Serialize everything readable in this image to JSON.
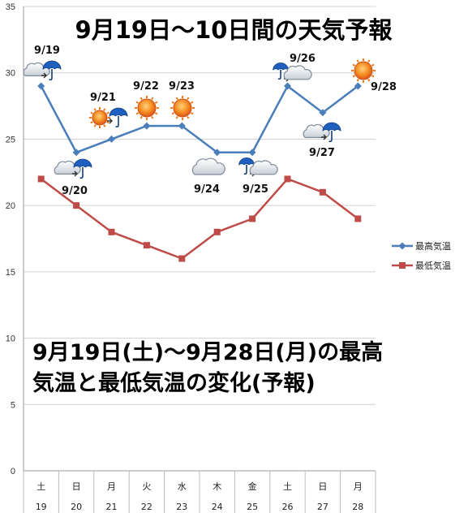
{
  "chart_data": {
    "type": "line",
    "title": "9月19日〜10日間の天気予報",
    "subtitle_lines": [
      "9月19日(土)〜9月28日(月)の最高",
      "気温と最低気温の変化(予報)"
    ],
    "xlabel": "",
    "ylabel": "",
    "ylim": [
      0,
      35
    ],
    "yticks": [
      "0",
      "5",
      "10",
      "15",
      "20",
      "25",
      "30",
      "35"
    ],
    "grid": "horizontal",
    "legend_position": "right",
    "categories": [
      {
        "weekday": "土",
        "day": "19"
      },
      {
        "weekday": "日",
        "day": "20"
      },
      {
        "weekday": "月",
        "day": "21"
      },
      {
        "weekday": "火",
        "day": "22"
      },
      {
        "weekday": "水",
        "day": "23"
      },
      {
        "weekday": "木",
        "day": "24"
      },
      {
        "weekday": "金",
        "day": "25"
      },
      {
        "weekday": "土",
        "day": "26"
      },
      {
        "weekday": "日",
        "day": "27"
      },
      {
        "weekday": "月",
        "day": "28"
      }
    ],
    "series": [
      {
        "name": "最高気温",
        "color": "#4a7ebb",
        "marker": "diamond",
        "values": [
          29,
          24,
          25,
          26,
          26,
          24,
          24,
          29,
          27,
          29
        ]
      },
      {
        "name": "最低気温",
        "color": "#be4b48",
        "marker": "square",
        "values": [
          22,
          20,
          18,
          17,
          16,
          18,
          19,
          22,
          21,
          19
        ]
      }
    ],
    "annotations": [
      {
        "date": "9/19",
        "weather": "cloudy-then-rain-icon"
      },
      {
        "date": "9/20",
        "weather": "cloudy-then-rain-icon"
      },
      {
        "date": "9/21",
        "weather": "sunny-then-rain-icon"
      },
      {
        "date": "9/22",
        "weather": "sunny-icon"
      },
      {
        "date": "9/23",
        "weather": "sunny-icon"
      },
      {
        "date": "9/24",
        "weather": "cloudy-icon"
      },
      {
        "date": "9/25",
        "weather": "rain-then-cloudy-icon"
      },
      {
        "date": "9/26",
        "weather": "rain-then-cloudy-icon"
      },
      {
        "date": "9/27",
        "weather": "cloudy-then-rain-icon"
      },
      {
        "date": "9/28",
        "weather": "sunny-icon"
      }
    ]
  }
}
